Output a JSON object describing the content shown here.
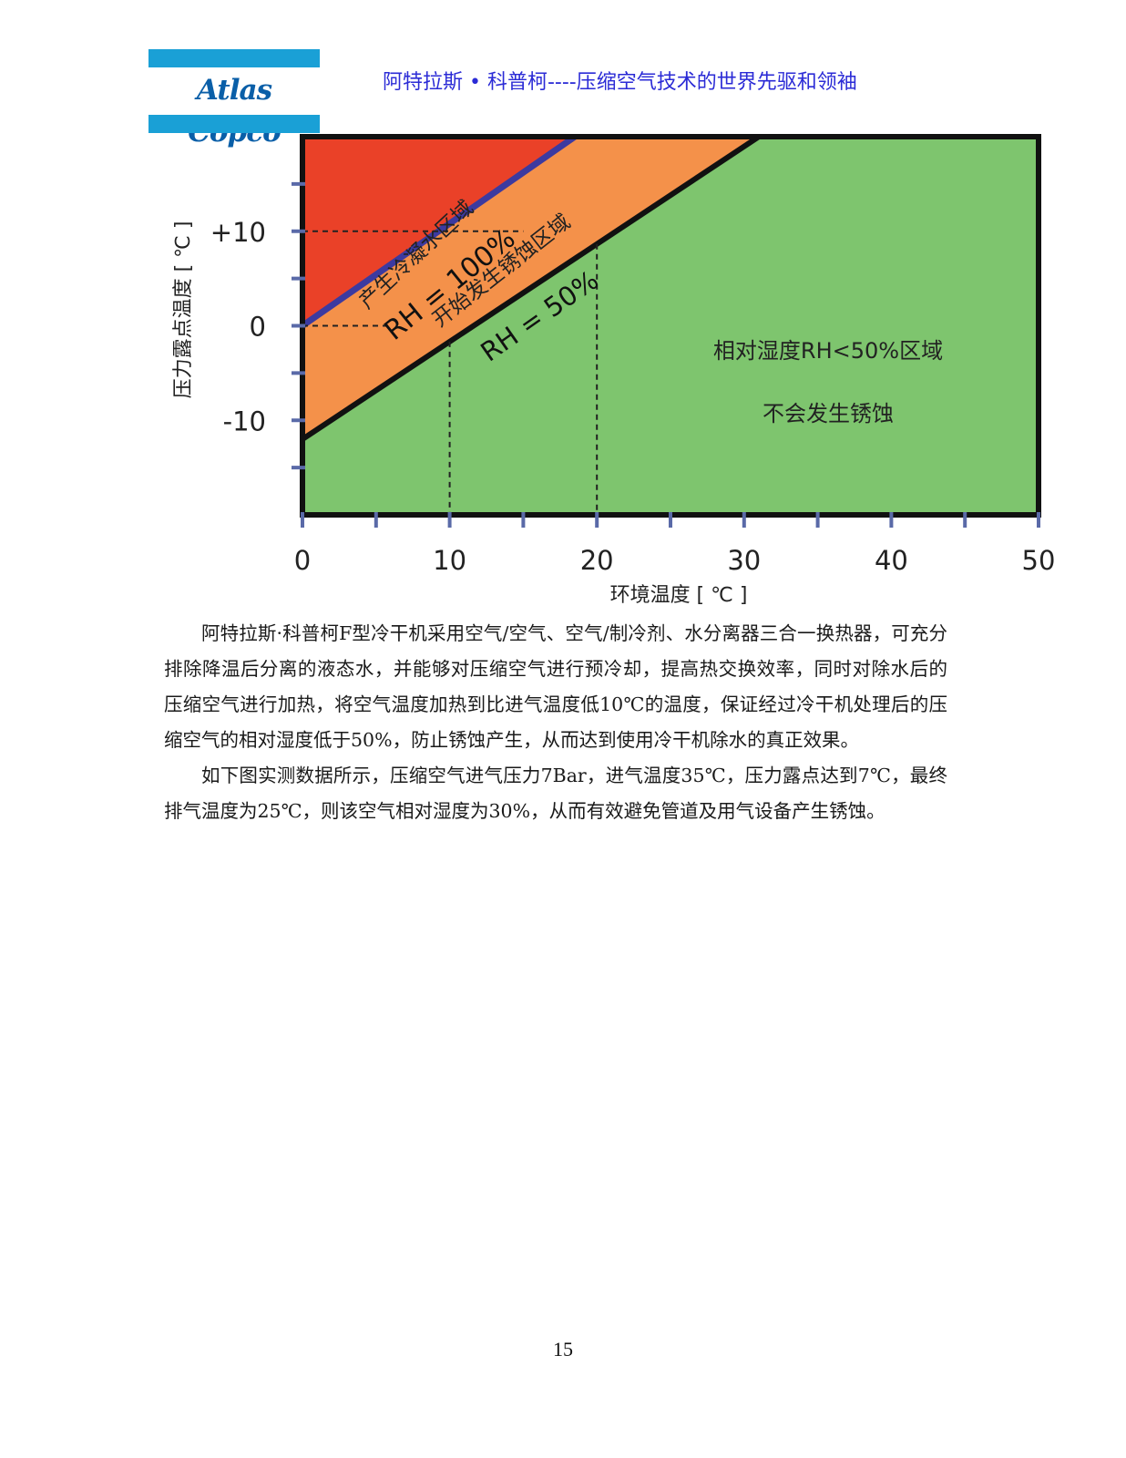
{
  "header": {
    "logo_text": "Atlas Copco",
    "title": "阿特拉斯 • 科普柯----压缩空气技术的世界先驱和领袖"
  },
  "chart_data": {
    "type": "area",
    "xlabel": "环境温度 [ ℃ ]",
    "ylabel": "压力露点温度 [ ℃ ]",
    "xlim": [
      0,
      50
    ],
    "ylim": [
      -20,
      20
    ],
    "x_ticks": [
      "0",
      "10",
      "20",
      "30",
      "40",
      "50"
    ],
    "y_ticks": [
      "+10",
      "0",
      "-10"
    ],
    "grid": false,
    "series": [
      {
        "name": "RH = 100%",
        "x": [
          0,
          18.5
        ],
        "y": [
          0,
          20
        ]
      },
      {
        "name": "RH = 50%",
        "x": [
          0,
          31
        ],
        "y": [
          -12,
          20
        ]
      }
    ],
    "zones": {
      "condensation": "产生冷凝水区域",
      "corrosion": "开始发生锈蚀区域",
      "safe_line1": "相对湿度RH<50%区域",
      "safe_line2": "不会发生锈蚀"
    },
    "colors": {
      "condensation": "#ea4128",
      "corrosion": "#f4914a",
      "safe": "#7ec56e",
      "rh100_line": "#3c3aa0",
      "rh50_line": "#111111"
    }
  },
  "body": {
    "paragraphs": [
      "阿特拉斯·科普柯F型冷干机采用空气/空气、空气/制冷剂、水分离器三合一换热器，可充分排除降温后分离的液态水，并能够对压缩空气进行预冷却，提高热交换效率，同时对除水后的压缩空气进行加热，将空气温度加热到比进气温度低10℃的温度，保证经过冷干机处理后的压缩空气的相对湿度低于50%，防止锈蚀产生，从而达到使用冷干机除水的真正效果。",
      "如下图实测数据所示，压缩空气进气压力7Bar，进气温度35℃，压力露点达到7℃，最终排气温度为25℃，则该空气相对湿度为30%，从而有效避免管道及用气设备产生锈蚀。"
    ]
  },
  "footer": {
    "page_number": "15"
  }
}
